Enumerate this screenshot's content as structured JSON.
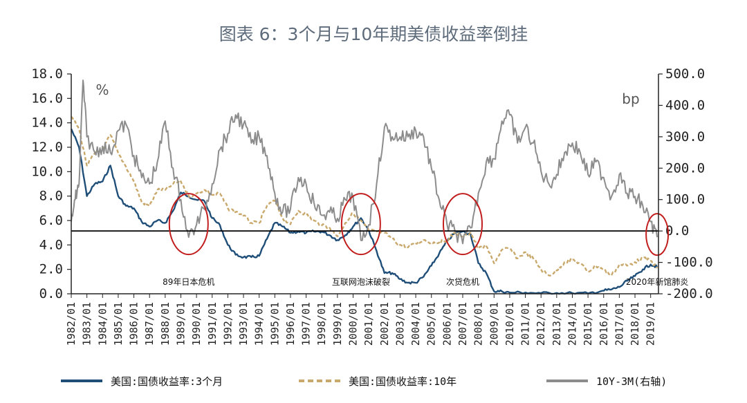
{
  "chart_data": {
    "type": "line",
    "title": "图表 6：3个月与10年期美债收益率倒挂",
    "left_axis": {
      "unit": "%",
      "ylim": [
        0,
        18
      ],
      "ticks": [
        "18.0",
        "16.0",
        "14.0",
        "12.0",
        "10.0",
        "8.0",
        "6.0",
        "4.0",
        "2.0",
        "0.0"
      ]
    },
    "right_axis": {
      "unit": "bp",
      "ylim": [
        -200,
        500
      ],
      "ticks": [
        "500.0",
        "400.0",
        "300.0",
        "200.0",
        "100.0",
        "0.0",
        "-100.0",
        "-200.0"
      ]
    },
    "x_ticks": [
      "1982/01",
      "1983/01",
      "1984/01",
      "1985/01",
      "1986/01",
      "1987/01",
      "1988/01",
      "1989/01",
      "1990/01",
      "1991/01",
      "1992/01",
      "1993/01",
      "1994/01",
      "1995/01",
      "1996/01",
      "1997/01",
      "1998/01",
      "1999/01",
      "2000/01",
      "2001/01",
      "2002/01",
      "2003/01",
      "2004/01",
      "2005/01",
      "2006/01",
      "2007/01",
      "2008/01",
      "2009/01",
      "2010/01",
      "2011/01",
      "2012/01",
      "2013/01",
      "2014/01",
      "2015/01",
      "2016/01",
      "2017/01",
      "2018/01",
      "2019/01"
    ],
    "series": [
      {
        "name": "美国:国债收益率:3个月",
        "axis": "left",
        "color": "#1f4e79",
        "style": "solid",
        "points": [
          [
            "1982/01",
            13.5
          ],
          [
            "1982/07",
            12.0
          ],
          [
            "1983/01",
            8.0
          ],
          [
            "1983/07",
            9.0
          ],
          [
            "1984/01",
            9.2
          ],
          [
            "1984/07",
            10.5
          ],
          [
            "1985/01",
            8.0
          ],
          [
            "1985/07",
            7.2
          ],
          [
            "1986/01",
            7.0
          ],
          [
            "1986/07",
            5.9
          ],
          [
            "1987/01",
            5.5
          ],
          [
            "1987/07",
            6.0
          ],
          [
            "1988/01",
            5.8
          ],
          [
            "1988/07",
            6.8
          ],
          [
            "1989/01",
            8.3
          ],
          [
            "1989/07",
            8.0
          ],
          [
            "1990/01",
            7.7
          ],
          [
            "1990/07",
            7.6
          ],
          [
            "1991/01",
            6.2
          ],
          [
            "1991/07",
            5.6
          ],
          [
            "1992/01",
            4.0
          ],
          [
            "1992/07",
            3.2
          ],
          [
            "1993/01",
            3.0
          ],
          [
            "1993/07",
            3.0
          ],
          [
            "1994/01",
            3.1
          ],
          [
            "1994/07",
            4.5
          ],
          [
            "1995/01",
            5.8
          ],
          [
            "1995/07",
            5.5
          ],
          [
            "1996/01",
            5.0
          ],
          [
            "1996/07",
            5.1
          ],
          [
            "1997/01",
            5.0
          ],
          [
            "1997/07",
            5.1
          ],
          [
            "1998/01",
            5.1
          ],
          [
            "1998/07",
            4.8
          ],
          [
            "1999/01",
            4.4
          ],
          [
            "1999/07",
            4.8
          ],
          [
            "2000/01",
            5.5
          ],
          [
            "2000/07",
            6.2
          ],
          [
            "2001/01",
            5.2
          ],
          [
            "2001/07",
            3.5
          ],
          [
            "2002/01",
            1.7
          ],
          [
            "2002/07",
            1.7
          ],
          [
            "2003/01",
            1.2
          ],
          [
            "2003/07",
            0.9
          ],
          [
            "2004/01",
            0.9
          ],
          [
            "2004/07",
            1.4
          ],
          [
            "2005/01",
            2.3
          ],
          [
            "2005/07",
            3.3
          ],
          [
            "2006/01",
            4.3
          ],
          [
            "2006/07",
            5.0
          ],
          [
            "2007/01",
            5.1
          ],
          [
            "2007/07",
            4.9
          ],
          [
            "2008/01",
            2.5
          ],
          [
            "2008/07",
            1.7
          ],
          [
            "2009/01",
            0.2
          ],
          [
            "2009/07",
            0.2
          ],
          [
            "2010/01",
            0.1
          ],
          [
            "2011/01",
            0.1
          ],
          [
            "2012/01",
            0.05
          ],
          [
            "2013/01",
            0.07
          ],
          [
            "2014/01",
            0.05
          ],
          [
            "2015/01",
            0.03
          ],
          [
            "2015/12",
            0.25
          ],
          [
            "2016/07",
            0.35
          ],
          [
            "2017/01",
            0.55
          ],
          [
            "2017/07",
            1.05
          ],
          [
            "2018/01",
            1.45
          ],
          [
            "2018/07",
            2.0
          ],
          [
            "2019/01",
            2.4
          ],
          [
            "2019/06",
            2.2
          ]
        ]
      },
      {
        "name": "美国:国债收益率:10年",
        "axis": "left",
        "color": "#c9a86b",
        "style": "dashed",
        "points": [
          [
            "1982/01",
            14.5
          ],
          [
            "1982/07",
            13.5
          ],
          [
            "1983/01",
            10.5
          ],
          [
            "1983/07",
            11.5
          ],
          [
            "1984/01",
            11.8
          ],
          [
            "1984/07",
            13.0
          ],
          [
            "1985/01",
            11.5
          ],
          [
            "1985/07",
            10.4
          ],
          [
            "1986/01",
            9.2
          ],
          [
            "1986/07",
            7.5
          ],
          [
            "1987/01",
            7.2
          ],
          [
            "1987/07",
            8.5
          ],
          [
            "1988/01",
            8.5
          ],
          [
            "1988/07",
            9.0
          ],
          [
            "1989/01",
            9.2
          ],
          [
            "1989/07",
            8.0
          ],
          [
            "1990/01",
            8.2
          ],
          [
            "1990/07",
            8.5
          ],
          [
            "1991/01",
            8.1
          ],
          [
            "1991/07",
            8.2
          ],
          [
            "1992/01",
            7.0
          ],
          [
            "1992/07",
            6.7
          ],
          [
            "1993/01",
            6.4
          ],
          [
            "1993/07",
            5.8
          ],
          [
            "1994/01",
            5.8
          ],
          [
            "1994/07",
            7.2
          ],
          [
            "1995/01",
            7.6
          ],
          [
            "1995/07",
            6.2
          ],
          [
            "1996/01",
            5.7
          ],
          [
            "1996/07",
            6.8
          ],
          [
            "1997/01",
            6.5
          ],
          [
            "1997/07",
            6.0
          ],
          [
            "1998/01",
            5.6
          ],
          [
            "1998/07",
            5.4
          ],
          [
            "1999/01",
            4.7
          ],
          [
            "1999/07",
            5.8
          ],
          [
            "2000/01",
            6.6
          ],
          [
            "2000/07",
            6.0
          ],
          [
            "2001/01",
            5.2
          ],
          [
            "2001/07",
            5.1
          ],
          [
            "2002/01",
            5.0
          ],
          [
            "2002/07",
            4.5
          ],
          [
            "2003/01",
            4.0
          ],
          [
            "2003/07",
            3.8
          ],
          [
            "2004/01",
            4.1
          ],
          [
            "2004/07",
            4.4
          ],
          [
            "2005/01",
            4.2
          ],
          [
            "2005/07",
            4.2
          ],
          [
            "2006/01",
            4.4
          ],
          [
            "2006/07",
            5.0
          ],
          [
            "2007/01",
            4.7
          ],
          [
            "2007/07",
            5.0
          ],
          [
            "2008/01",
            3.7
          ],
          [
            "2008/07",
            3.9
          ],
          [
            "2009/01",
            2.5
          ],
          [
            "2009/07",
            3.6
          ],
          [
            "2010/01",
            3.7
          ],
          [
            "2010/07",
            2.9
          ],
          [
            "2011/01",
            3.4
          ],
          [
            "2011/07",
            2.9
          ],
          [
            "2012/01",
            2.0
          ],
          [
            "2012/07",
            1.5
          ],
          [
            "2013/01",
            1.9
          ],
          [
            "2013/07",
            2.6
          ],
          [
            "2014/01",
            2.8
          ],
          [
            "2014/07",
            2.5
          ],
          [
            "2015/01",
            1.8
          ],
          [
            "2015/07",
            2.3
          ],
          [
            "2016/01",
            2.0
          ],
          [
            "2016/07",
            1.5
          ],
          [
            "2017/01",
            2.4
          ],
          [
            "2017/07",
            2.3
          ],
          [
            "2018/01",
            2.6
          ],
          [
            "2018/07",
            2.9
          ],
          [
            "2019/01",
            2.7
          ],
          [
            "2019/06",
            2.1
          ]
        ]
      },
      {
        "name": "10Y-3M(右轴)",
        "axis": "right",
        "color": "#8c8c8c",
        "style": "solid",
        "points": [
          [
            "1982/01",
            30
          ],
          [
            "1982/04",
            100
          ],
          [
            "1982/07",
            150
          ],
          [
            "1982/10",
            480
          ],
          [
            "1983/01",
            300
          ],
          [
            "1983/07",
            250
          ],
          [
            "1984/01",
            270
          ],
          [
            "1984/07",
            250
          ],
          [
            "1985/01",
            320
          ],
          [
            "1985/07",
            340
          ],
          [
            "1986/01",
            240
          ],
          [
            "1986/07",
            170
          ],
          [
            "1987/01",
            150
          ],
          [
            "1987/07",
            220
          ],
          [
            "1988/01",
            350
          ],
          [
            "1988/07",
            200
          ],
          [
            "1989/01",
            100
          ],
          [
            "1989/07",
            -20
          ],
          [
            "1990/01",
            20
          ],
          [
            "1990/07",
            70
          ],
          [
            "1991/01",
            150
          ],
          [
            "1991/07",
            260
          ],
          [
            "1992/01",
            310
          ],
          [
            "1992/07",
            370
          ],
          [
            "1993/01",
            340
          ],
          [
            "1993/07",
            280
          ],
          [
            "1994/01",
            300
          ],
          [
            "1994/07",
            240
          ],
          [
            "1995/01",
            120
          ],
          [
            "1995/07",
            60
          ],
          [
            "1996/01",
            70
          ],
          [
            "1996/07",
            170
          ],
          [
            "1997/01",
            150
          ],
          [
            "1997/07",
            90
          ],
          [
            "1998/01",
            50
          ],
          [
            "1998/07",
            60
          ],
          [
            "1999/01",
            40
          ],
          [
            "1999/07",
            100
          ],
          [
            "2000/01",
            110
          ],
          [
            "2000/07",
            -30
          ],
          [
            "2001/01",
            20
          ],
          [
            "2001/07",
            150
          ],
          [
            "2002/01",
            330
          ],
          [
            "2002/07",
            300
          ],
          [
            "2003/01",
            300
          ],
          [
            "2003/07",
            300
          ],
          [
            "2004/01",
            320
          ],
          [
            "2004/07",
            300
          ],
          [
            "2005/01",
            200
          ],
          [
            "2005/07",
            100
          ],
          [
            "2006/01",
            20
          ],
          [
            "2006/07",
            0
          ],
          [
            "2007/01",
            -40
          ],
          [
            "2007/07",
            10
          ],
          [
            "2008/01",
            120
          ],
          [
            "2008/07",
            220
          ],
          [
            "2009/01",
            230
          ],
          [
            "2009/07",
            350
          ],
          [
            "2010/01",
            370
          ],
          [
            "2010/07",
            280
          ],
          [
            "2011/01",
            330
          ],
          [
            "2011/07",
            280
          ],
          [
            "2012/01",
            190
          ],
          [
            "2012/07",
            150
          ],
          [
            "2013/01",
            180
          ],
          [
            "2013/07",
            250
          ],
          [
            "2014/01",
            280
          ],
          [
            "2014/07",
            250
          ],
          [
            "2015/01",
            180
          ],
          [
            "2015/07",
            220
          ],
          [
            "2016/01",
            170
          ],
          [
            "2016/07",
            110
          ],
          [
            "2017/01",
            180
          ],
          [
            "2017/07",
            120
          ],
          [
            "2018/01",
            110
          ],
          [
            "2018/07",
            80
          ],
          [
            "2019/01",
            30
          ],
          [
            "2019/06",
            -20
          ]
        ]
      }
    ],
    "reference_line": {
      "axis": "right",
      "value": 0
    },
    "annotations": [
      {
        "text": "89年日本危机",
        "date": "1989/07",
        "circled": true
      },
      {
        "text": "互联网泡沫破裂",
        "date": "2000/07",
        "circled": true
      },
      {
        "text": "次贷危机",
        "date": "2007/01",
        "circled": true
      },
      {
        "text": "2020年新馆肺炎",
        "date": "2019/06",
        "circled": true,
        "color": "#e03030"
      }
    ],
    "grid": false,
    "legend_position": "bottom"
  }
}
